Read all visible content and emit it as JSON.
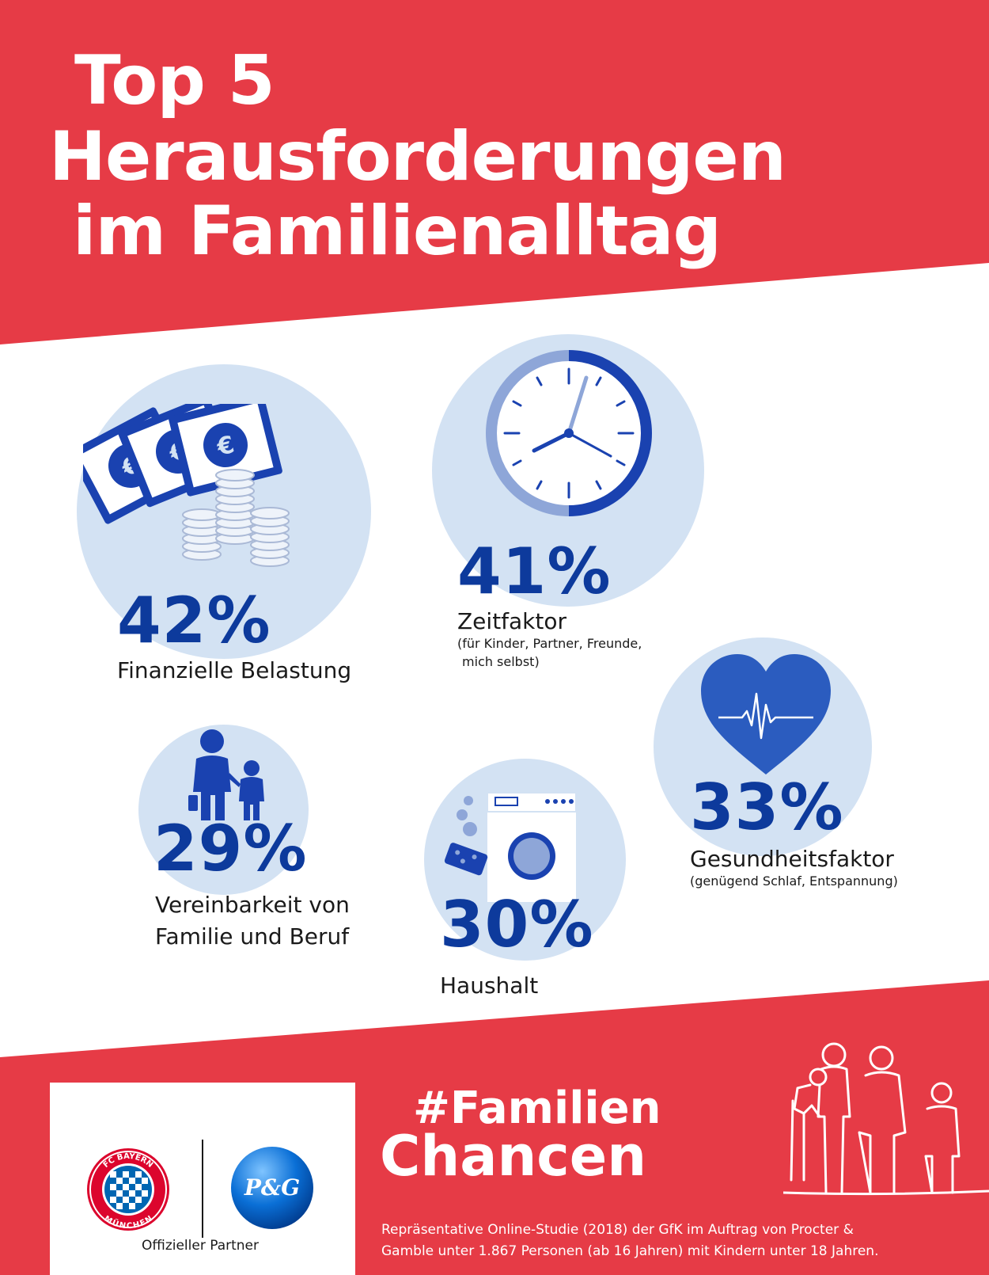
{
  "title": {
    "line1": "Top 5",
    "line2": "Herausforderungen",
    "line3": "im Familienalltag"
  },
  "colors": {
    "brand_red": "#e63b46",
    "dark_blue": "#0d3a9c",
    "light_blue": "#d3e2f3",
    "mid_blue": "#2b5cbf"
  },
  "items": [
    {
      "percent": "42%",
      "label": "Finanzielle Belastung",
      "icon": "money-icon"
    },
    {
      "percent": "41%",
      "label": "Zeitfaktor",
      "sub1": "(für Kinder, Partner, Freunde,",
      "sub2": "mich selbst)",
      "icon": "clock-icon"
    },
    {
      "percent": "33%",
      "label": "Gesundheitsfaktor",
      "sub1": "(genügend Schlaf, Entspannung)",
      "icon": "heart-pulse-icon"
    },
    {
      "percent": "29%",
      "label1": "Vereinbarkeit von",
      "label2": "Familie und Beruf",
      "icon": "parent-child-icon"
    },
    {
      "percent": "30%",
      "label": "Haushalt",
      "icon": "washing-machine-icon"
    }
  ],
  "footer": {
    "partner_label": "Offizieller Partner",
    "logo1": {
      "icon": "fc-bayern-logo",
      "top_text": "FC BAYERN",
      "bottom_text": "MÜNCHEN"
    },
    "logo2": {
      "icon": "pg-logo",
      "text": "P&G"
    },
    "hashtag_line1": "#Familien",
    "hashtag_line2": "Chancen",
    "note_line1": "Repräsentative Online-Studie (2018) der GfK im Auftrag von Procter &",
    "note_line2": "Gamble unter 1.867 Personen (ab 16 Jahren) mit Kindern unter 18 Jahren."
  }
}
